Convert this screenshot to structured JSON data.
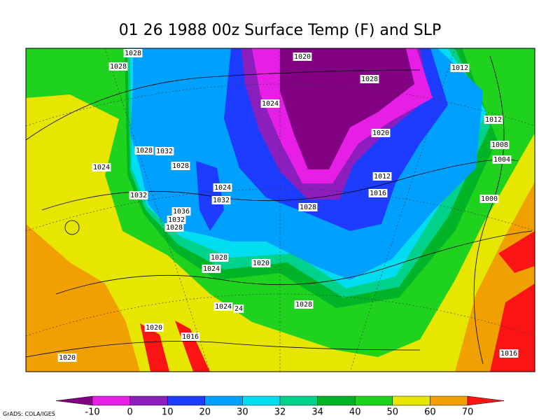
{
  "title": "01 26 1988 00z Surface Temp (F) and SLP",
  "isobar_labels": [
    "1028",
    "1020",
    "1028",
    "1028",
    "1012",
    "1024",
    "1020",
    "1012",
    "1028",
    "1032",
    "1008",
    "1024",
    "1028",
    "1004",
    "1012",
    "1024",
    "1016",
    "1032",
    "1032",
    "1000",
    "1028",
    "1036",
    "1032",
    "1028",
    "1028",
    "1020",
    "1024",
    "1024",
    "24",
    "1028",
    "1020",
    "1016",
    "1020",
    "1016"
  ],
  "colorbar": {
    "labels": [
      "-10",
      "0",
      "10",
      "20",
      "30",
      "32",
      "34",
      "40",
      "50",
      "60",
      "70"
    ],
    "colors": [
      "#820082",
      "#e61ee6",
      "#8c1ebe",
      "#1e3cff",
      "#00a0ff",
      "#00dcf0",
      "#00d28c",
      "#00b428",
      "#1ed21e",
      "#e6e600",
      "#f0a000",
      "#fa1414"
    ]
  },
  "credit": "GrADS: COLA/IGES"
}
